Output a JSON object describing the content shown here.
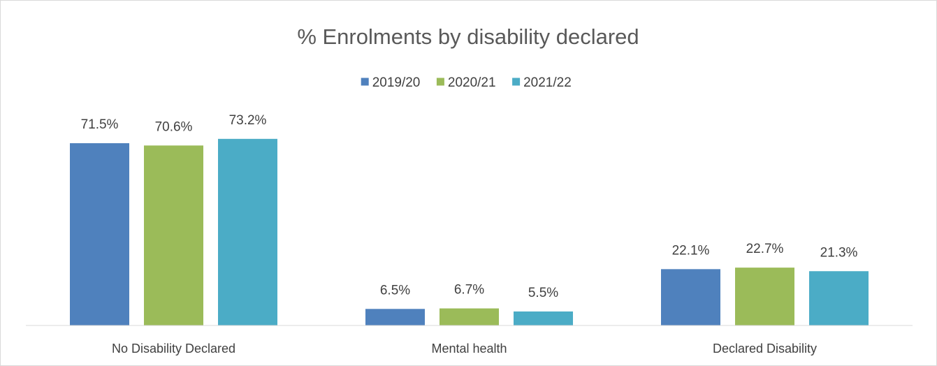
{
  "chart_data": {
    "type": "bar",
    "title": "% Enrolments by disability declared",
    "categories": [
      "No Disability Declared",
      "Mental health",
      "Declared Disability"
    ],
    "series": [
      {
        "name": "2019/20",
        "color": "#4f81bd",
        "values": [
          71.5,
          6.5,
          22.1
        ],
        "labels": [
          "71.5%",
          "6.5%",
          "22.1%"
        ]
      },
      {
        "name": "2020/21",
        "color": "#9bbb59",
        "values": [
          70.6,
          6.7,
          22.7
        ],
        "labels": [
          "70.6%",
          "6.7%",
          "22.7%"
        ]
      },
      {
        "name": "2021/22",
        "color": "#4bacc6",
        "values": [
          73.2,
          5.5,
          21.3
        ],
        "labels": [
          "73.2%",
          "5.5%",
          "21.3%"
        ]
      }
    ],
    "xlabel": "",
    "ylabel": "",
    "ylim": [
      0,
      100
    ],
    "grid": false,
    "legend_position": "top-center",
    "axis_color": "#d9d9d9"
  }
}
